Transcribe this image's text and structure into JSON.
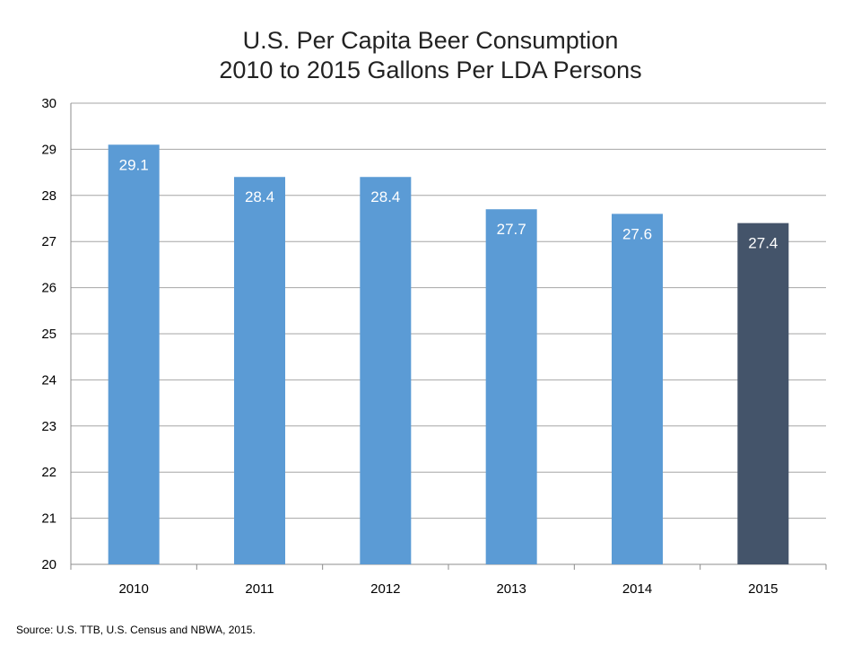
{
  "chart_data": {
    "type": "bar",
    "title": "U.S. Per Capita Beer Consumption",
    "subtitle": "2010 to 2015 Gallons Per LDA Persons",
    "categories": [
      "2010",
      "2011",
      "2012",
      "2013",
      "2014",
      "2015"
    ],
    "values": [
      29.1,
      28.4,
      28.4,
      27.7,
      27.6,
      27.4
    ],
    "data_labels": [
      "29.1",
      "28.4",
      "28.4",
      "27.7",
      "27.6",
      "27.4"
    ],
    "ylim": [
      20,
      30
    ],
    "yticks": [
      "20",
      "21",
      "22",
      "23",
      "24",
      "25",
      "26",
      "27",
      "28",
      "29",
      "30"
    ],
    "grid": true,
    "legend": "none",
    "colors": {
      "bar": "#5b9bd5",
      "highlight_bar": "#44546a",
      "grid": "#a6a6a6",
      "axis": "#8c8c8c"
    },
    "highlight_index": 5
  },
  "source_note": "Source: U.S. TTB, U.S. Census and NBWA, 2015."
}
